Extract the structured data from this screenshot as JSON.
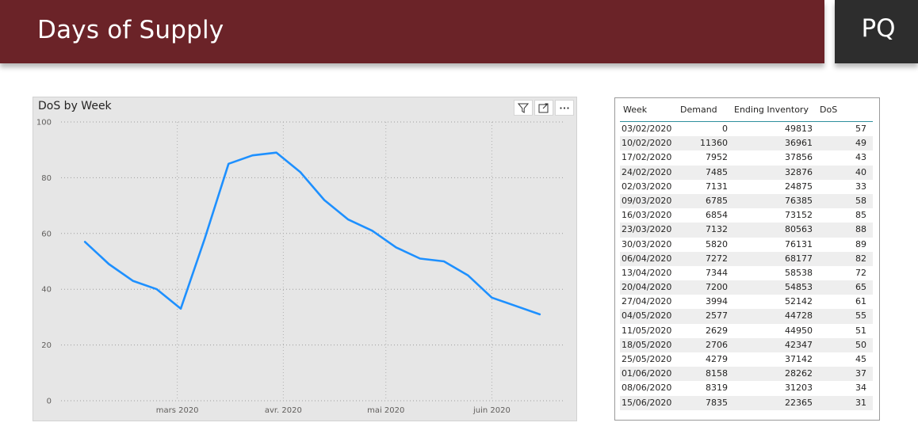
{
  "header": {
    "title": "Days of Supply",
    "badge": "PQ"
  },
  "colors": {
    "header_bg": "#6b2328",
    "badge_bg": "#2d2d2d",
    "line": "#1e90ff",
    "table_accent": "#2f8f9d"
  },
  "chart": {
    "title": "DoS by Week",
    "toolbar": {
      "filter_icon": "filter-icon",
      "focus_icon": "focus-mode-icon",
      "more_icon": "more-options-icon"
    }
  },
  "chart_data": {
    "type": "line",
    "title": "DoS by Week",
    "xlabel": "",
    "ylabel": "",
    "ylim": [
      0,
      100
    ],
    "yticks": [
      0,
      20,
      40,
      60,
      80,
      100
    ],
    "x_tick_labels": [
      "mars 2020",
      "avr. 2020",
      "mai 2020",
      "juin 2020"
    ],
    "x_tick_dates": [
      "2020-03-01",
      "2020-04-01",
      "2020-05-01",
      "2020-06-01"
    ],
    "x": [
      "2020-02-03",
      "2020-02-10",
      "2020-02-17",
      "2020-02-24",
      "2020-03-02",
      "2020-03-09",
      "2020-03-16",
      "2020-03-23",
      "2020-03-30",
      "2020-04-06",
      "2020-04-13",
      "2020-04-20",
      "2020-04-27",
      "2020-05-04",
      "2020-05-11",
      "2020-05-18",
      "2020-05-25",
      "2020-06-01",
      "2020-06-08",
      "2020-06-15"
    ],
    "series": [
      {
        "values": [
          57,
          49,
          43,
          40,
          33,
          58,
          85,
          88,
          89,
          82,
          72,
          65,
          61,
          55,
          51,
          50,
          45,
          37,
          34,
          31
        ]
      }
    ],
    "grid": true
  },
  "table": {
    "headers": [
      "Week",
      "Demand",
      "Ending Inventory",
      "DoS"
    ],
    "rows": [
      [
        "03/02/2020",
        "0",
        "49813",
        "57"
      ],
      [
        "10/02/2020",
        "11360",
        "36961",
        "49"
      ],
      [
        "17/02/2020",
        "7952",
        "37856",
        "43"
      ],
      [
        "24/02/2020",
        "7485",
        "32876",
        "40"
      ],
      [
        "02/03/2020",
        "7131",
        "24875",
        "33"
      ],
      [
        "09/03/2020",
        "6785",
        "76385",
        "58"
      ],
      [
        "16/03/2020",
        "6854",
        "73152",
        "85"
      ],
      [
        "23/03/2020",
        "7132",
        "80563",
        "88"
      ],
      [
        "30/03/2020",
        "5820",
        "76131",
        "89"
      ],
      [
        "06/04/2020",
        "7272",
        "68177",
        "82"
      ],
      [
        "13/04/2020",
        "7344",
        "58538",
        "72"
      ],
      [
        "20/04/2020",
        "7200",
        "54853",
        "65"
      ],
      [
        "27/04/2020",
        "3994",
        "52142",
        "61"
      ],
      [
        "04/05/2020",
        "2577",
        "44728",
        "55"
      ],
      [
        "11/05/2020",
        "2629",
        "44950",
        "51"
      ],
      [
        "18/05/2020",
        "2706",
        "42347",
        "50"
      ],
      [
        "25/05/2020",
        "4279",
        "37142",
        "45"
      ],
      [
        "01/06/2020",
        "8158",
        "28262",
        "37"
      ],
      [
        "08/06/2020",
        "8319",
        "31203",
        "34"
      ],
      [
        "15/06/2020",
        "7835",
        "22365",
        "31"
      ]
    ]
  }
}
